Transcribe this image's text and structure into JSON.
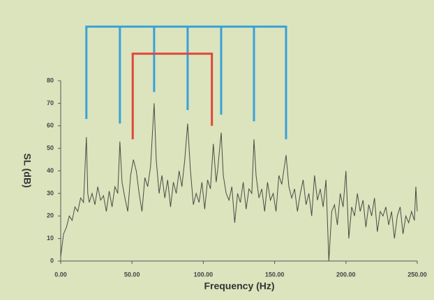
{
  "chart_data": {
    "type": "line",
    "xlabel": "Frequency (Hz)",
    "ylabel": "SL (dB)",
    "xlim": [
      0,
      250
    ],
    "ylim": [
      0,
      80
    ],
    "xticks": [
      {
        "value": 0,
        "label": "0.00"
      },
      {
        "value": 50,
        "label": "50.00"
      },
      {
        "value": 100,
        "label": "100.00"
      },
      {
        "value": 150,
        "label": "150.00"
      },
      {
        "value": 200,
        "label": "200.00"
      },
      {
        "value": 250,
        "label": "250.00"
      }
    ],
    "yticks": [
      0,
      10,
      20,
      30,
      40,
      50,
      60,
      70,
      80
    ],
    "grid": false,
    "series": [
      {
        "color": "#4a4a44",
        "x": [
          0,
          2,
          4,
          6,
          8,
          10,
          12,
          14,
          16,
          18,
          19,
          20,
          22,
          24,
          26,
          28,
          30,
          32,
          34,
          36,
          38,
          40,
          41.5,
          43,
          45,
          47,
          49,
          51,
          53,
          55,
          57,
          59,
          61,
          63,
          65.5,
          67,
          69,
          71,
          73,
          75,
          77,
          79,
          81,
          83,
          85,
          87,
          89,
          91,
          93,
          95,
          97,
          99,
          101,
          103,
          105,
          107,
          109,
          110,
          112.5,
          114,
          116,
          118,
          120,
          122,
          124,
          126,
          128,
          130,
          132,
          134,
          135.5,
          137,
          139,
          141,
          143,
          145,
          147,
          149,
          151,
          153,
          155,
          158,
          160,
          162,
          164,
          166,
          168,
          170,
          172,
          174,
          176,
          178,
          180,
          182,
          184,
          186,
          188,
          190,
          192,
          194,
          196,
          198,
          200,
          202,
          204,
          206,
          208,
          210,
          212,
          214,
          216,
          218,
          220,
          222,
          224,
          226,
          228,
          230,
          232,
          234,
          236,
          238,
          240,
          242,
          244,
          246,
          248,
          249,
          250
        ],
        "values": [
          2,
          12,
          15,
          20,
          18,
          24,
          22,
          28,
          26,
          55,
          30,
          26,
          30,
          25,
          33,
          27,
          29,
          22,
          31,
          24,
          33,
          30,
          53,
          35,
          28,
          22,
          38,
          45,
          40,
          30,
          22,
          37,
          33,
          42,
          70,
          45,
          30,
          38,
          28,
          36,
          24,
          35,
          30,
          40,
          33,
          45,
          61,
          40,
          25,
          30,
          26,
          35,
          23,
          36,
          32,
          52,
          35,
          40,
          57,
          38,
          30,
          27,
          33,
          17,
          30,
          26,
          35,
          23,
          32,
          30,
          54,
          38,
          28,
          32,
          22,
          35,
          27,
          30,
          22,
          38,
          34,
          47,
          33,
          28,
          32,
          22,
          30,
          36,
          25,
          30,
          20,
          38,
          27,
          32,
          24,
          36,
          0,
          22,
          25,
          16,
          30,
          24,
          40,
          10,
          24,
          20,
          30,
          22,
          27,
          15,
          25,
          20,
          28,
          13,
          22,
          20,
          24,
          16,
          22,
          10,
          20,
          24,
          12,
          20,
          17,
          22,
          18,
          33,
          22
        ]
      }
    ],
    "brackets": [
      {
        "color": "#3aa0d8",
        "top": 104,
        "x": [
          18,
          41.5,
          65.5,
          89,
          112.5,
          135.5,
          158
        ],
        "bottom": [
          63,
          61,
          75,
          67,
          65,
          62,
          54
        ]
      },
      {
        "color": "#e0463a",
        "top": 92,
        "x": [
          50.5,
          106
        ],
        "bottom": [
          54,
          60
        ]
      }
    ]
  }
}
